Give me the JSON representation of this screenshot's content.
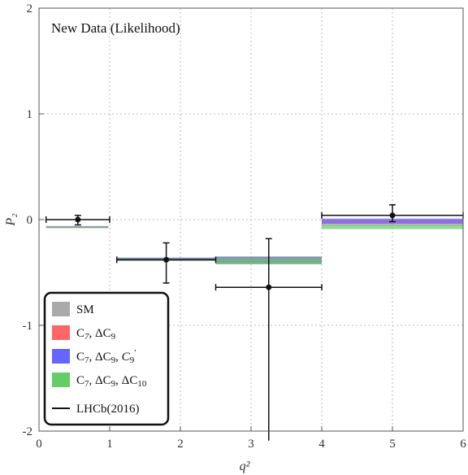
{
  "chart_data": {
    "type": "scatter",
    "title": "New Data (Likelihood)",
    "xlabel": "q²",
    "ylabel": "P₂",
    "xlim": [
      0,
      6
    ],
    "ylim": [
      -2,
      2
    ],
    "x_ticks": [
      "0",
      "1",
      "2",
      "3",
      "4",
      "5",
      "6"
    ],
    "y_ticks": [
      "-2",
      "-1",
      "0",
      "1",
      "2"
    ],
    "grid": true,
    "legend_position": "bottom-left",
    "series": [
      {
        "name": "SM",
        "color": "#aaaaaa",
        "bins": [
          {
            "x0": 0.1,
            "x1": 0.98,
            "y0": -0.075,
            "y1": -0.06
          },
          {
            "x0": 1.1,
            "x1": 2.5,
            "y0": -0.39,
            "y1": -0.36
          },
          {
            "x0": 2.5,
            "x1": 4.0,
            "y0": -0.42,
            "y1": -0.35
          },
          {
            "x0": 4.0,
            "x1": 6.0,
            "y0": -0.06,
            "y1": 0.0
          }
        ]
      },
      {
        "name": "C7, ΔC9",
        "color": "#ff6666",
        "bins": [
          {
            "x0": 0.1,
            "x1": 0.98,
            "y0": -0.075,
            "y1": -0.065
          },
          {
            "x0": 1.1,
            "x1": 2.5,
            "y0": -0.385,
            "y1": -0.365
          },
          {
            "x0": 2.5,
            "x1": 4.0,
            "y0": -0.42,
            "y1": -0.35
          },
          {
            "x0": 4.0,
            "x1": 6.0,
            "y0": -0.04,
            "y1": 0.0
          }
        ]
      },
      {
        "name": "C7, ΔC9, C9'",
        "color": "#6666ff",
        "bins": [
          {
            "x0": 0.1,
            "x1": 0.98,
            "y0": -0.075,
            "y1": -0.065
          },
          {
            "x0": 1.1,
            "x1": 2.5,
            "y0": -0.38,
            "y1": -0.36
          },
          {
            "x0": 2.5,
            "x1": 4.0,
            "y0": -0.42,
            "y1": -0.35
          },
          {
            "x0": 4.0,
            "x1": 6.0,
            "y0": -0.04,
            "y1": 0.01
          }
        ]
      },
      {
        "name": "C7, ΔC9, ΔC10",
        "color": "#66cc66",
        "bins": [
          {
            "x0": 0.1,
            "x1": 0.98,
            "y0": -0.08,
            "y1": -0.07
          },
          {
            "x0": 1.1,
            "x1": 2.5,
            "y0": -0.39,
            "y1": -0.37
          },
          {
            "x0": 2.5,
            "x1": 4.0,
            "y0": -0.42,
            "y1": -0.36
          },
          {
            "x0": 4.0,
            "x1": 6.0,
            "y0": -0.09,
            "y1": -0.05
          }
        ]
      }
    ],
    "data_points": {
      "name": "LHCb(2016)",
      "points": [
        {
          "x": 0.55,
          "y": 0.0,
          "xerr": [
            0.45,
            0.45
          ],
          "yerr": [
            0.05,
            0.04
          ]
        },
        {
          "x": 1.8,
          "y": -0.38,
          "xerr": [
            0.7,
            0.7
          ],
          "yerr": [
            0.22,
            0.16
          ]
        },
        {
          "x": 3.25,
          "y": -0.64,
          "xerr": [
            0.75,
            0.75
          ],
          "yerr": [
            1.45,
            0.46
          ]
        },
        {
          "x": 5.0,
          "y": 0.04,
          "xerr": [
            1.0,
            1.0
          ],
          "yerr": [
            0.06,
            0.1
          ]
        }
      ]
    }
  }
}
